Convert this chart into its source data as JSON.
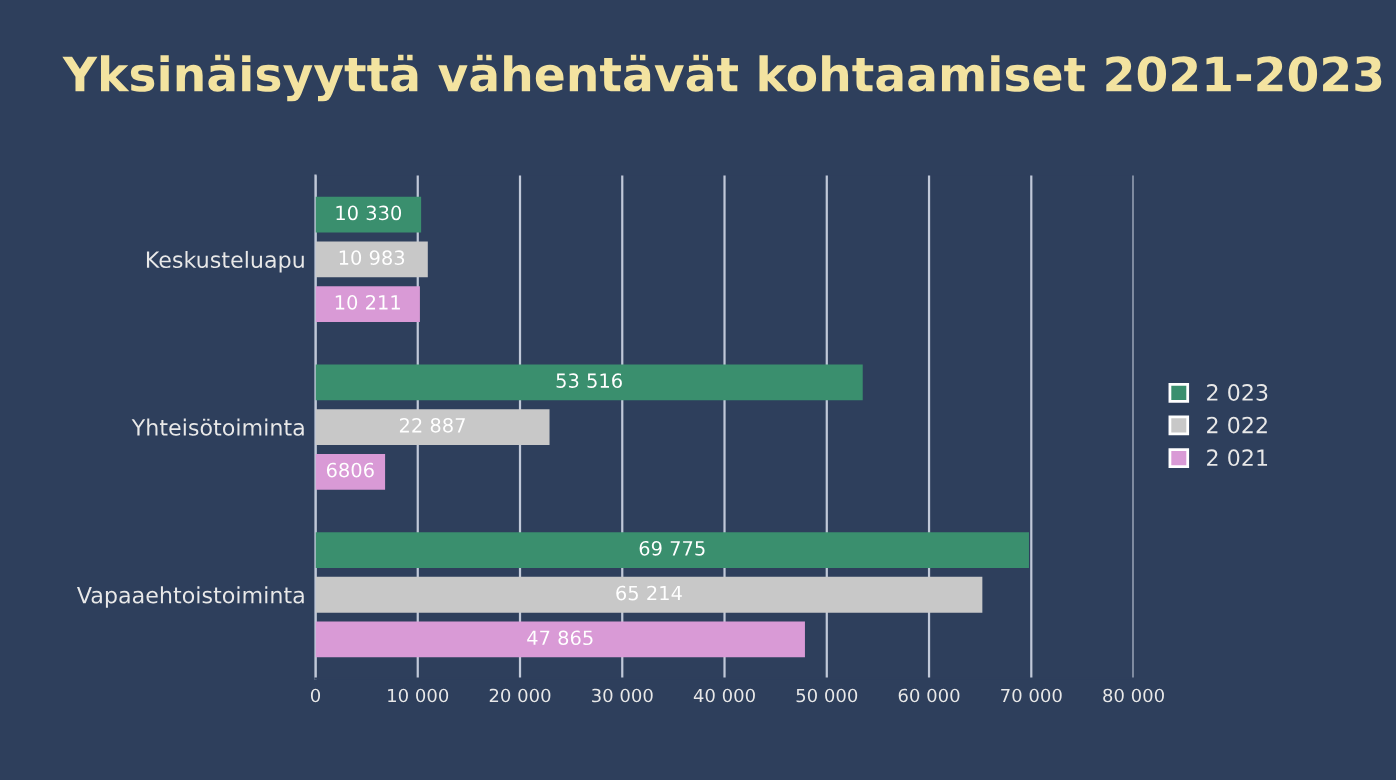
{
  "chart_data": {
    "type": "bar",
    "orientation": "horizontal",
    "title": "Yksinäisyyttä vähentävät kohtaamiset 2021-2023",
    "categories": [
      "Keskusteluapu",
      "Yhteisötoiminta",
      "Vapaaehtoistoiminta"
    ],
    "series": [
      {
        "name": "2 023",
        "color": "#3a8f6e",
        "values": [
          10330,
          53516,
          69775
        ],
        "value_labels": [
          "10 330",
          "53 516",
          "69 775"
        ]
      },
      {
        "name": "2 022",
        "color": "#c8c8c8",
        "values": [
          10983,
          22887,
          65214
        ],
        "value_labels": [
          "10 983",
          "22 887",
          "65 214"
        ]
      },
      {
        "name": "2 021",
        "color": "#d99ad6",
        "values": [
          10211,
          6806,
          47865
        ],
        "value_labels": [
          "10 211",
          "6806",
          "47 865"
        ]
      }
    ],
    "xlim": [
      0,
      80000
    ],
    "xticks": [
      0,
      {
        "value": 10000,
        "label": "10 000"
      },
      {
        "value": 20000,
        "label": "20 000"
      },
      {
        "value": 30000,
        "label": "30 000"
      },
      {
        "value": 40000,
        "label": "40 000"
      },
      {
        "value": 50000,
        "label": "50 000"
      },
      {
        "value": 60000,
        "label": "60 000"
      },
      {
        "value": 70000,
        "label": "70 000"
      },
      {
        "value": 80000,
        "label": "80 000"
      }
    ],
    "grid": "x",
    "legend": "right"
  }
}
